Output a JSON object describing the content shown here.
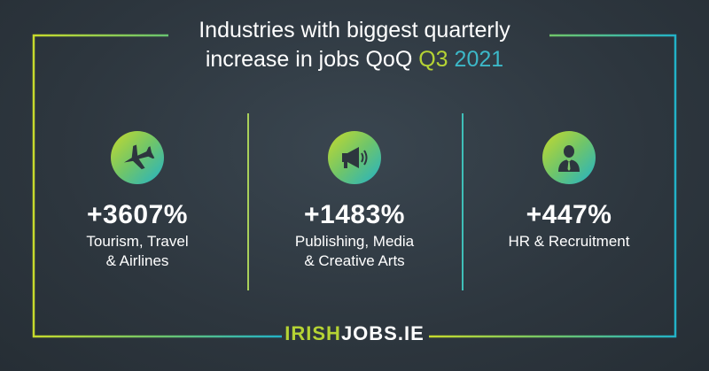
{
  "title": {
    "line1": "Industries with biggest quarterly",
    "line2_prefix": "increase in jobs QoQ",
    "line2_quarter": "Q3",
    "line2_year": "2021"
  },
  "industries": [
    {
      "value": "+3607%",
      "label_line1": "Tourism, Travel",
      "label_line2": "& Airlines",
      "icon": "airplane-icon"
    },
    {
      "value": "+1483%",
      "label_line1": "Publishing, Media",
      "label_line2": "& Creative Arts",
      "icon": "megaphone-icon"
    },
    {
      "value": "+447%",
      "label_line1": "HR & Recruitment",
      "label_line2": "",
      "icon": "businessman-icon"
    }
  ],
  "logo": {
    "part1": "IRISH",
    "part2": "JOBS.IE"
  },
  "colors": {
    "background": "#2d363e",
    "accent_green": "#b5d334",
    "accent_teal": "#3cb8c8",
    "frame_left": "#c7da2c",
    "frame_right": "#22b2c8"
  }
}
